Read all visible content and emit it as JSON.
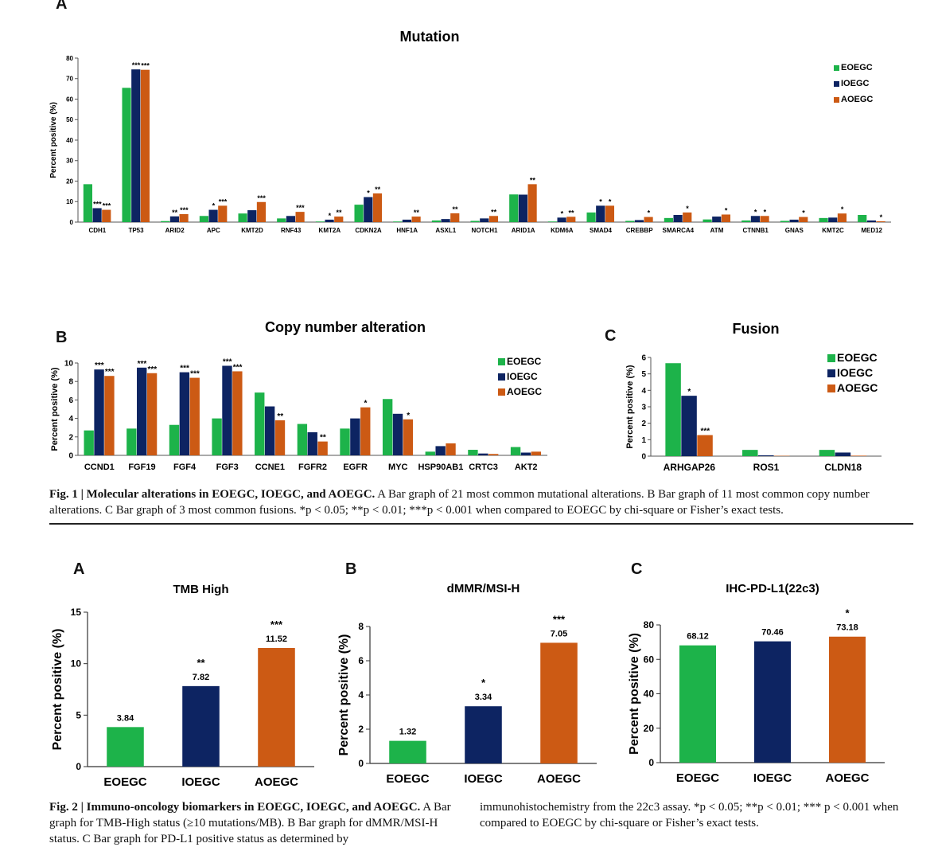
{
  "figure1": {
    "panel_a_letter": "A",
    "panel_b_letter": "B",
    "panel_c_letter": "C",
    "caption": {
      "label": "Fig. 1 | Molecular alterations in EOEGC, IOEGC, and AOEGC.",
      "text": "A Bar graph of 21 most common mutational alterations. B Bar graph of 11 most common copy number alterations. C Bar graph of 3 most common fusions. *p < 0.05; **p < 0.01; ***p < 0.001 when compared to EOEGC by chi-square or Fisher’s exact tests."
    }
  },
  "figure2": {
    "panel_a_letter": "A",
    "panel_b_letter": "B",
    "panel_c_letter": "C",
    "caption": {
      "label": "Fig. 2 | Immuno-oncology biomarkers in EOEGC, IOEGC, and AOEGC.",
      "text_left": "A Bar graph for TMB-High status (≥10 mutations/MB). B Bar graph for dMMR/MSI-H status. C Bar graph for PD-L1 positive status as determined by",
      "text_right": "immunohistochemistry from the 22c3 assay. *p < 0.05; **p < 0.01; *** p < 0.001 when compared to EOEGC by chi-square or Fisher’s exact tests."
    }
  },
  "colors": {
    "EOEGC": "#1db34a",
    "IOEGC": "#0d2462",
    "AOEGC": "#cc5a14"
  },
  "chart_data": [
    {
      "id": "mutation",
      "type": "bar",
      "title": "Mutation",
      "ylabel": "Percent positive (%)",
      "ylim": [
        0,
        80
      ],
      "yticks": [
        0,
        10,
        20,
        30,
        40,
        50,
        60,
        70,
        80
      ],
      "legend": "top-right",
      "categories": [
        "CDH1",
        "TP53",
        "ARID2",
        "APC",
        "KMT2D",
        "RNF43",
        "KMT2A",
        "CDKN2A",
        "HNF1A",
        "ASXL1",
        "NOTCH1",
        "ARID1A",
        "KDM6A",
        "SMAD4",
        "CREBBP",
        "SMARCA4",
        "ATM",
        "CTNNB1",
        "GNAS",
        "KMT2C",
        "MED12"
      ],
      "series": [
        {
          "name": "EOEGC",
          "values": [
            18.5,
            65.5,
            0.5,
            3.0,
            4.2,
            1.8,
            0.3,
            8.5,
            0.3,
            0.8,
            0.6,
            13.5,
            0.3,
            4.7,
            0.6,
            2.0,
            1.3,
            0.8,
            0.6,
            2.0,
            3.5
          ]
        },
        {
          "name": "IOEGC",
          "values": [
            6.8,
            74.5,
            2.8,
            6.0,
            5.8,
            3.0,
            1.2,
            12.2,
            1.2,
            1.5,
            1.8,
            13.4,
            2.2,
            8.0,
            1.0,
            3.5,
            2.7,
            3.0,
            1.2,
            2.2,
            0.8
          ]
        },
        {
          "name": "AOEGC",
          "values": [
            6.0,
            74.3,
            3.9,
            8.0,
            9.8,
            5.0,
            2.7,
            14.0,
            2.7,
            4.3,
            3.0,
            18.5,
            2.6,
            8.0,
            2.5,
            4.7,
            3.7,
            3.0,
            2.5,
            4.2,
            0.4
          ]
        }
      ],
      "annotations": [
        {
          "category": "CDH1",
          "series": "IOEGC",
          "text": "***"
        },
        {
          "category": "CDH1",
          "series": "AOEGC",
          "text": "***"
        },
        {
          "category": "TP53",
          "series": "IOEGC",
          "text": "***"
        },
        {
          "category": "TP53",
          "series": "AOEGC",
          "text": "***"
        },
        {
          "category": "ARID2",
          "series": "IOEGC",
          "text": "**"
        },
        {
          "category": "ARID2",
          "series": "AOEGC",
          "text": "***"
        },
        {
          "category": "APC",
          "series": "IOEGC",
          "text": "*"
        },
        {
          "category": "APC",
          "series": "AOEGC",
          "text": "***"
        },
        {
          "category": "KMT2D",
          "series": "AOEGC",
          "text": "***"
        },
        {
          "category": "RNF43",
          "series": "AOEGC",
          "text": "***"
        },
        {
          "category": "KMT2A",
          "series": "IOEGC",
          "text": "*"
        },
        {
          "category": "KMT2A",
          "series": "AOEGC",
          "text": "**"
        },
        {
          "category": "CDKN2A",
          "series": "IOEGC",
          "text": "*"
        },
        {
          "category": "CDKN2A",
          "series": "AOEGC",
          "text": "**"
        },
        {
          "category": "HNF1A",
          "series": "AOEGC",
          "text": "**"
        },
        {
          "category": "ASXL1",
          "series": "AOEGC",
          "text": "**"
        },
        {
          "category": "NOTCH1",
          "series": "AOEGC",
          "text": "**"
        },
        {
          "category": "ARID1A",
          "series": "AOEGC",
          "text": "**"
        },
        {
          "category": "KDM6A",
          "series": "IOEGC",
          "text": "*"
        },
        {
          "category": "KDM6A",
          "series": "AOEGC",
          "text": "**"
        },
        {
          "category": "SMAD4",
          "series": "IOEGC",
          "text": "*"
        },
        {
          "category": "SMAD4",
          "series": "AOEGC",
          "text": "*"
        },
        {
          "category": "CREBBP",
          "series": "AOEGC",
          "text": "*"
        },
        {
          "category": "SMARCA4",
          "series": "AOEGC",
          "text": "*"
        },
        {
          "category": "ATM",
          "series": "AOEGC",
          "text": "*"
        },
        {
          "category": "CTNNB1",
          "series": "IOEGC",
          "text": "*"
        },
        {
          "category": "CTNNB1",
          "series": "AOEGC",
          "text": "*"
        },
        {
          "category": "GNAS",
          "series": "AOEGC",
          "text": "*"
        },
        {
          "category": "KMT2C",
          "series": "AOEGC",
          "text": "*"
        },
        {
          "category": "MED12",
          "series": "AOEGC",
          "text": "*"
        }
      ]
    },
    {
      "id": "cna",
      "type": "bar",
      "title": "Copy number alteration",
      "ylabel": "Percent positive (%)",
      "ylim": [
        0,
        10
      ],
      "yticks": [
        0,
        2,
        4,
        6,
        8,
        10
      ],
      "legend": "top-right",
      "categories": [
        "CCND1",
        "FGF19",
        "FGF4",
        "FGF3",
        "CCNE1",
        "FGFR2",
        "EGFR",
        "MYC",
        "HSP90AB1",
        "CRTC3",
        "AKT2"
      ],
      "series": [
        {
          "name": "EOEGC",
          "values": [
            2.7,
            2.9,
            3.3,
            4.0,
            6.8,
            3.4,
            2.9,
            6.1,
            0.4,
            0.6,
            0.9
          ]
        },
        {
          "name": "IOEGC",
          "values": [
            9.3,
            9.5,
            9.0,
            9.7,
            5.3,
            2.5,
            4.0,
            4.5,
            1.0,
            0.2,
            0.3
          ]
        },
        {
          "name": "AOEGC",
          "values": [
            8.6,
            8.9,
            8.4,
            9.1,
            3.8,
            1.5,
            5.2,
            3.9,
            1.3,
            0.15,
            0.4
          ]
        }
      ],
      "annotations": [
        {
          "category": "CCND1",
          "series": "IOEGC",
          "text": "***"
        },
        {
          "category": "CCND1",
          "series": "AOEGC",
          "text": "***"
        },
        {
          "category": "FGF19",
          "series": "IOEGC",
          "text": "***"
        },
        {
          "category": "FGF19",
          "series": "AOEGC",
          "text": "***"
        },
        {
          "category": "FGF4",
          "series": "IOEGC",
          "text": "***"
        },
        {
          "category": "FGF4",
          "series": "AOEGC",
          "text": "***"
        },
        {
          "category": "FGF3",
          "series": "IOEGC",
          "text": "***"
        },
        {
          "category": "FGF3",
          "series": "AOEGC",
          "text": "***"
        },
        {
          "category": "CCNE1",
          "series": "AOEGC",
          "text": "**"
        },
        {
          "category": "FGFR2",
          "series": "AOEGC",
          "text": "**"
        },
        {
          "category": "EGFR",
          "series": "AOEGC",
          "text": "*"
        },
        {
          "category": "MYC",
          "series": "AOEGC",
          "text": "*"
        }
      ]
    },
    {
      "id": "fusion",
      "type": "bar",
      "title": "Fusion",
      "ylabel": "Percent positive (%)",
      "ylim": [
        0,
        6
      ],
      "yticks": [
        0,
        1,
        2,
        3,
        4,
        5,
        6
      ],
      "legend": "top-right",
      "categories": [
        "ARHGAP26",
        "ROS1",
        "CLDN18"
      ],
      "series": [
        {
          "name": "EOEGC",
          "values": [
            5.65,
            0.38,
            0.38
          ]
        },
        {
          "name": "IOEGC",
          "values": [
            3.67,
            0.05,
            0.22
          ]
        },
        {
          "name": "AOEGC",
          "values": [
            1.28,
            0.02,
            0.03
          ]
        }
      ],
      "annotations": [
        {
          "category": "ARHGAP26",
          "series": "IOEGC",
          "text": "*"
        },
        {
          "category": "ARHGAP26",
          "series": "AOEGC",
          "text": "***"
        }
      ]
    },
    {
      "id": "tmb",
      "type": "bar",
      "title": "TMB High",
      "ylabel": "Percent positive (%)",
      "ylim": [
        0,
        15
      ],
      "yticks": [
        0,
        5,
        10,
        15
      ],
      "categories": [
        "EOEGC",
        "IOEGC",
        "AOEGC"
      ],
      "values": [
        3.84,
        7.82,
        11.52
      ],
      "value_labels": [
        "3.84",
        "7.82",
        "11.52"
      ],
      "significance": [
        "",
        "**",
        "***"
      ]
    },
    {
      "id": "msi",
      "type": "bar",
      "title": "dMMR/MSI-H",
      "ylabel": "Percent positive (%)",
      "ylim": [
        0,
        8
      ],
      "yticks": [
        0,
        2,
        4,
        6,
        8
      ],
      "categories": [
        "EOEGC",
        "IOEGC",
        "AOEGC"
      ],
      "values": [
        1.32,
        3.34,
        7.05
      ],
      "value_labels": [
        "1.32",
        "3.34",
        "7.05"
      ],
      "significance": [
        "",
        "*",
        "***"
      ]
    },
    {
      "id": "pdl1",
      "type": "bar",
      "title": "IHC-PD-L1(22c3)",
      "ylabel": "Percent positive (%)",
      "ylim": [
        0,
        80
      ],
      "yticks": [
        0,
        20,
        40,
        60,
        80
      ],
      "categories": [
        "EOEGC",
        "IOEGC",
        "AOEGC"
      ],
      "values": [
        68.12,
        70.46,
        73.18
      ],
      "value_labels": [
        "68.12",
        "70.46",
        "73.18"
      ],
      "significance": [
        "",
        "",
        "*"
      ]
    }
  ]
}
